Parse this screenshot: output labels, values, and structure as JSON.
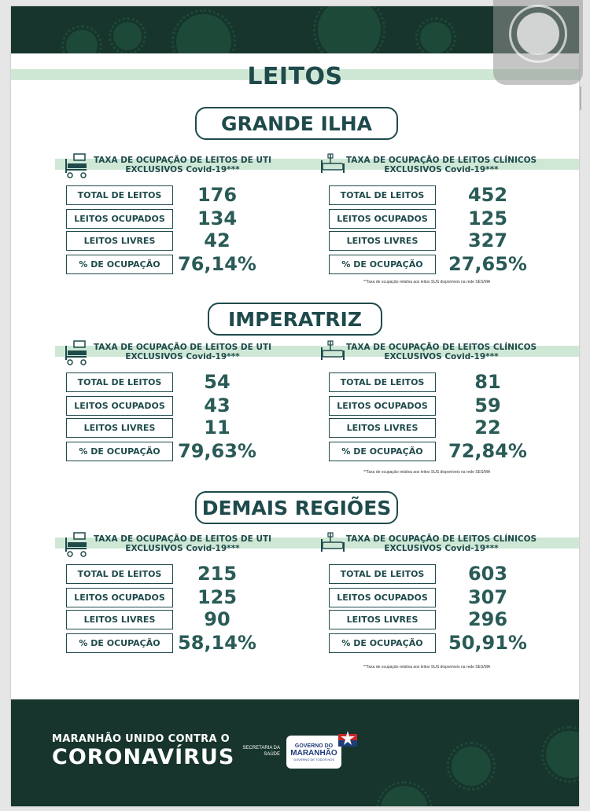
{
  "title": "LEITOS",
  "regions": [
    {
      "name": "GRANDE ILHA",
      "uti": {
        "title_line1": "TAXA DE OCUPAÇÃO DE LEITOS DE UTI",
        "title_line2": "EXCLUSIVOS Covid-19***",
        "rows": [
          {
            "label": "TOTAL DE LEITOS",
            "value": "176"
          },
          {
            "label": "LEITOS OCUPADOS",
            "value": "134"
          },
          {
            "label": "LEITOS LIVRES",
            "value": "42"
          },
          {
            "label": "% DE OCUPAÇÃO",
            "value": "76,14%"
          }
        ]
      },
      "clinicos": {
        "title_line1": "TAXA DE OCUPAÇÃO DE LEITOS CLÍNICOS",
        "title_line2": "EXCLUSIVOS Covid-19***",
        "rows": [
          {
            "label": "TOTAL DE LEITOS",
            "value": "452"
          },
          {
            "label": "LEITOS OCUPADOS",
            "value": "125"
          },
          {
            "label": "LEITOS LIVRES",
            "value": "327"
          },
          {
            "label": "% DE OCUPAÇÃO",
            "value": "27,65%"
          }
        ]
      },
      "footnote": "**Taxa de ocupação relativa aos leitos SUS disponíveis na rede SES/MA"
    },
    {
      "name": "IMPERATRIZ",
      "uti": {
        "title_line1": "TAXA DE OCUPAÇÃO DE LEITOS DE UTI",
        "title_line2": "EXCLUSIVOS Covid-19***",
        "rows": [
          {
            "label": "TOTAL DE LEITOS",
            "value": "54"
          },
          {
            "label": "LEITOS OCUPADOS",
            "value": "43"
          },
          {
            "label": "LEITOS LIVRES",
            "value": "11"
          },
          {
            "label": "% DE OCUPAÇÃO",
            "value": "79,63%"
          }
        ]
      },
      "clinicos": {
        "title_line1": "TAXA DE OCUPAÇÃO DE LEITOS CLÍNICOS",
        "title_line2": "EXCLUSIVOS Covid-19***",
        "rows": [
          {
            "label": "TOTAL DE LEITOS",
            "value": "81"
          },
          {
            "label": "LEITOS OCUPADOS",
            "value": "59"
          },
          {
            "label": "LEITOS LIVRES",
            "value": "22"
          },
          {
            "label": "% DE OCUPAÇÃO",
            "value": "72,84%"
          }
        ]
      },
      "footnote": "**Taxa de ocupação relativa aos leitos SUS disponíveis na rede SES/MA"
    },
    {
      "name": "DEMAIS REGIÕES",
      "uti": {
        "title_line1": "TAXA DE OCUPAÇÃO DE LEITOS DE UTI",
        "title_line2": "EXCLUSIVOS Covid-19***",
        "rows": [
          {
            "label": "TOTAL DE LEITOS",
            "value": "215"
          },
          {
            "label": "LEITOS OCUPADOS",
            "value": "125"
          },
          {
            "label": "LEITOS LIVRES",
            "value": "90"
          },
          {
            "label": "% DE OCUPAÇÃO",
            "value": "58,14%"
          }
        ]
      },
      "clinicos": {
        "title_line1": "TAXA DE OCUPAÇÃO DE LEITOS CLÍNICOS",
        "title_line2": "EXCLUSIVOS Covid-19***",
        "rows": [
          {
            "label": "TOTAL DE LEITOS",
            "value": "603"
          },
          {
            "label": "LEITOS OCUPADOS",
            "value": "307"
          },
          {
            "label": "LEITOS LIVRES",
            "value": "296"
          },
          {
            "label": "% DE OCUPAÇÃO",
            "value": "50,91%"
          }
        ]
      },
      "footnote": "**Taxa de ocupação relativa aos leitos SUS disponíveis na rede SES/MA"
    }
  ],
  "footer": {
    "slogan_line1": "MARANHÃO UNIDO CONTRA O",
    "slogan_line2": "CORONAVÍRUS",
    "secretaria_line1": "SECRETARIA DA",
    "secretaria_line2": "SAÚDE",
    "logo_line1": "GOVERNO DO",
    "logo_line2": "MARANHÃO",
    "logo_line3": "GOVERNO DE TODOS NÓS"
  },
  "colors": {
    "dark_green": "#17352c",
    "teal_text": "#1f4a4b",
    "value_text": "#2a5b57",
    "stripe": "#cfe8d6"
  }
}
